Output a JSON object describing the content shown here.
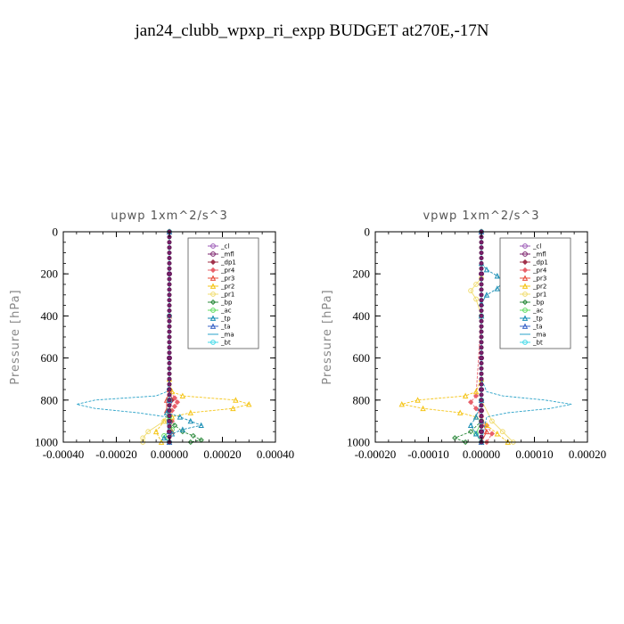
{
  "title": "jan24_clubb_wpxp_ri_expp  BUDGET at270E,-17N",
  "chart_data": [
    {
      "type": "line",
      "title": "upwp   1xm^2/s^3",
      "ylabel": "Pressure [hPa]",
      "xlim": [
        -0.0004,
        0.0004
      ],
      "ylim": [
        0,
        1000
      ],
      "y_inverted": true,
      "xticks": [
        "-0.00040",
        "-0.00020",
        "0.00000",
        "0.00020",
        "0.00040"
      ],
      "xtick_values": [
        -0.0004,
        -0.0002,
        0,
        0.0002,
        0.0004
      ],
      "yticks": [
        "0",
        "200",
        "400",
        "600",
        "800",
        "1000"
      ],
      "ytick_values": [
        0,
        200,
        400,
        600,
        800,
        1000
      ],
      "legend_position": "top-right",
      "series": [
        {
          "name": "_cl",
          "color": "#9b59b6",
          "y": [
            0,
            200,
            400,
            600,
            750,
            800,
            850,
            900,
            950,
            1000
          ],
          "x": [
            0,
            0,
            0,
            0,
            0,
            0,
            0,
            0,
            0,
            0
          ]
        },
        {
          "name": "_mfl",
          "color": "#7a1f6b",
          "y": [
            0,
            200,
            400,
            600,
            750,
            800,
            850,
            900,
            950,
            1000
          ],
          "x": [
            0,
            0,
            0,
            0,
            0,
            0,
            0,
            0,
            0,
            0
          ]
        },
        {
          "name": "_dp1",
          "color": "#a0304a",
          "y": [
            0,
            400,
            750,
            800,
            850,
            900,
            950,
            1000
          ],
          "x": [
            0,
            0,
            0,
            1e-05,
            0,
            0,
            0,
            0
          ]
        },
        {
          "name": "_pr4",
          "color": "#e8606a",
          "y": [
            0,
            400,
            750,
            790,
            810,
            830,
            850,
            870,
            900,
            950,
            1000
          ],
          "x": [
            0,
            0,
            0,
            2e-05,
            3e-05,
            2e-05,
            1e-05,
            0,
            1e-05,
            0,
            0
          ]
        },
        {
          "name": "_pr3",
          "color": "#e84c3d",
          "y": [
            0,
            400,
            750,
            800,
            850,
            900,
            950,
            1000
          ],
          "x": [
            0,
            0,
            0,
            -1e-05,
            -1e-05,
            0,
            1e-05,
            0
          ]
        },
        {
          "name": "_pr2",
          "color": "#f5c518",
          "y": [
            0,
            700,
            760,
            780,
            800,
            820,
            840,
            860,
            880,
            900,
            950,
            1000
          ],
          "x": [
            0,
            0,
            1e-05,
            5e-05,
            0.00025,
            0.0003,
            0.00024,
            8e-05,
            1e-05,
            -2e-05,
            -5e-05,
            -3e-05
          ]
        },
        {
          "name": "_pr1",
          "color": "#f0dc6e",
          "y": [
            0,
            400,
            800,
            850,
            900,
            950,
            980,
            1000
          ],
          "x": [
            0,
            0,
            0,
            0,
            -2e-05,
            -8e-05,
            -0.0001,
            -0.0001
          ]
        },
        {
          "name": "_bp",
          "color": "#2e8b3e",
          "y": [
            0,
            800,
            880,
            920,
            950,
            970,
            990,
            1000
          ],
          "x": [
            0,
            0,
            0,
            2e-05,
            5e-05,
            9e-05,
            0.00012,
            8e-05
          ]
        },
        {
          "name": "_ac",
          "color": "#5ddc5d",
          "y": [
            0,
            800,
            880,
            940,
            970,
            1000
          ],
          "x": [
            0,
            0,
            0,
            1e-05,
            -2e-05,
            0
          ]
        },
        {
          "name": "_tp",
          "color": "#1a8fb5",
          "y": [
            0,
            800,
            860,
            880,
            900,
            920,
            940,
            960,
            980,
            1000
          ],
          "x": [
            0,
            0,
            -1e-05,
            4e-05,
            8e-05,
            0.00012,
            5e-05,
            1e-05,
            -2e-05,
            0
          ]
        },
        {
          "name": "_ta",
          "color": "#3b64c8",
          "y": [
            0,
            800,
            900,
            950,
            1000
          ],
          "x": [
            0,
            0,
            0,
            0,
            0
          ]
        },
        {
          "name": "_ma",
          "color": "#2aa2c8",
          "y": [
            0,
            700,
            760,
            780,
            800,
            820,
            840,
            860,
            880,
            1000
          ],
          "x": [
            0,
            0,
            -1e-05,
            -5e-05,
            -0.00028,
            -0.00035,
            -0.00028,
            -0.00012,
            -1e-05,
            0
          ]
        },
        {
          "name": "_bt",
          "color": "#3fd9e8",
          "y": [
            0,
            400,
            800,
            1000
          ],
          "x": [
            0,
            0,
            0,
            0
          ]
        }
      ]
    },
    {
      "type": "line",
      "title": "vpwp   1xm^2/s^3",
      "ylabel": "Pressure [hPa]",
      "xlim": [
        -0.0002,
        0.0002
      ],
      "ylim": [
        0,
        1000
      ],
      "y_inverted": true,
      "xticks": [
        "-0.00020",
        "-0.00010",
        "0.00000",
        "0.00010",
        "0.00020"
      ],
      "xtick_values": [
        -0.0002,
        -0.0001,
        0,
        0.0001,
        0.0002
      ],
      "yticks": [
        "0",
        "200",
        "400",
        "600",
        "800",
        "1000"
      ],
      "ytick_values": [
        0,
        200,
        400,
        600,
        800,
        1000
      ],
      "legend_position": "top-right",
      "series": [
        {
          "name": "_cl",
          "color": "#9b59b6",
          "y": [
            0,
            200,
            400,
            600,
            750,
            800,
            850,
            900,
            950,
            1000
          ],
          "x": [
            0,
            0,
            0,
            0,
            0,
            0,
            0,
            0,
            0,
            0
          ]
        },
        {
          "name": "_mfl",
          "color": "#7a1f6b",
          "y": [
            0,
            200,
            400,
            600,
            750,
            800,
            850,
            900,
            950,
            1000
          ],
          "x": [
            0,
            0,
            0,
            0,
            0,
            0,
            0,
            0,
            0,
            0
          ]
        },
        {
          "name": "_dp1",
          "color": "#a0304a",
          "y": [
            0,
            400,
            800,
            900,
            1000
          ],
          "x": [
            0,
            0,
            0,
            0,
            0
          ]
        },
        {
          "name": "_pr4",
          "color": "#e8606a",
          "y": [
            0,
            400,
            780,
            810,
            840,
            880,
            920,
            960,
            1000
          ],
          "x": [
            0,
            0,
            -1e-05,
            -2e-05,
            -1e-05,
            0,
            1e-05,
            2e-05,
            1e-05
          ]
        },
        {
          "name": "_pr3",
          "color": "#e84c3d",
          "y": [
            0,
            400,
            800,
            900,
            950,
            1000
          ],
          "x": [
            0,
            0,
            0,
            0,
            1e-05,
            0
          ]
        },
        {
          "name": "_pr2",
          "color": "#f5c518",
          "y": [
            0,
            700,
            760,
            780,
            800,
            820,
            840,
            860,
            880,
            920,
            960,
            1000
          ],
          "x": [
            0,
            0,
            -1e-05,
            -3e-05,
            -0.00012,
            -0.00015,
            -0.00011,
            -4e-05,
            -1e-05,
            1e-05,
            3e-05,
            5e-05
          ]
        },
        {
          "name": "_pr1",
          "color": "#f0dc6e",
          "y": [
            0,
            220,
            250,
            280,
            320,
            400,
            800,
            900,
            950,
            1000
          ],
          "x": [
            0,
            0,
            -1e-05,
            -2e-05,
            -1e-05,
            0,
            0,
            2e-05,
            4e-05,
            6e-05
          ]
        },
        {
          "name": "_bp",
          "color": "#2e8b3e",
          "y": [
            0,
            800,
            900,
            950,
            980,
            1000
          ],
          "x": [
            0,
            0,
            0,
            -2e-05,
            -5e-05,
            -3e-05
          ]
        },
        {
          "name": "_ac",
          "color": "#5ddc5d",
          "y": [
            0,
            800,
            900,
            960,
            1000
          ],
          "x": [
            0,
            0,
            0,
            -1e-05,
            0
          ]
        },
        {
          "name": "_tp",
          "color": "#1a8fb5",
          "y": [
            0,
            150,
            180,
            210,
            240,
            270,
            300,
            340,
            400,
            800,
            880,
            920,
            960,
            1000
          ],
          "x": [
            0,
            0,
            1e-05,
            3e-05,
            4e-05,
            3e-05,
            1e-05,
            0,
            0,
            0,
            -1e-05,
            -2e-05,
            -1e-05,
            0
          ]
        },
        {
          "name": "_ta",
          "color": "#3b64c8",
          "y": [
            0,
            800,
            900,
            1000
          ],
          "x": [
            0,
            0,
            0,
            0
          ]
        },
        {
          "name": "_ma",
          "color": "#2aa2c8",
          "y": [
            0,
            700,
            760,
            780,
            800,
            820,
            840,
            860,
            880,
            1000
          ],
          "x": [
            0,
            0,
            1e-05,
            4e-05,
            0.00012,
            0.00017,
            0.00013,
            5e-05,
            1e-05,
            0
          ]
        },
        {
          "name": "_bt",
          "color": "#3fd9e8",
          "y": [
            0,
            400,
            800,
            1000
          ],
          "x": [
            0,
            0,
            0,
            0
          ]
        }
      ]
    }
  ]
}
